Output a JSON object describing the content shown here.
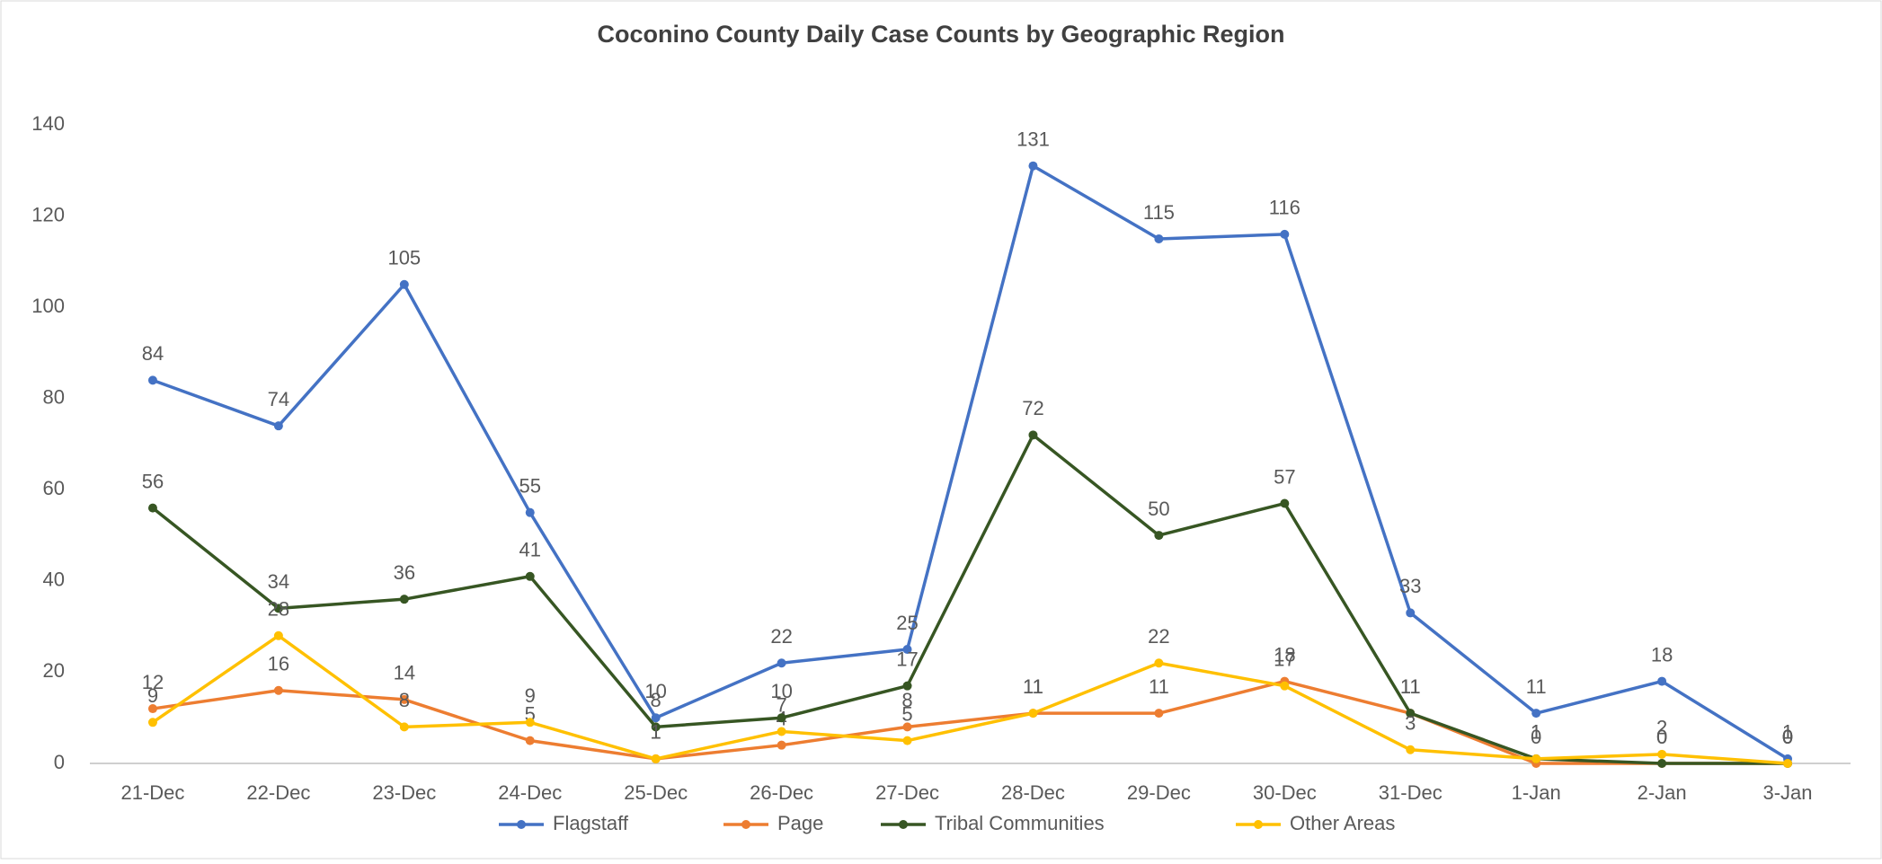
{
  "chart_data": {
    "type": "line",
    "title": "Coconino County Daily Case Counts by Geographic Region",
    "categories": [
      "21-Dec",
      "22-Dec",
      "23-Dec",
      "24-Dec",
      "25-Dec",
      "26-Dec",
      "27-Dec",
      "28-Dec",
      "29-Dec",
      "30-Dec",
      "31-Dec",
      "1-Jan",
      "2-Jan",
      "3-Jan"
    ],
    "series": [
      {
        "name": "Flagstaff",
        "color": "#4472c4",
        "values": [
          84,
          74,
          105,
          55,
          10,
          22,
          25,
          131,
          115,
          116,
          33,
          11,
          18,
          1
        ]
      },
      {
        "name": "Page",
        "color": "#ed7d31",
        "values": [
          12,
          16,
          14,
          5,
          1,
          4,
          8,
          11,
          11,
          18,
          11,
          0,
          0,
          0
        ]
      },
      {
        "name": "Tribal Communities",
        "color": "#375623",
        "values": [
          56,
          34,
          36,
          41,
          8,
          10,
          17,
          72,
          50,
          57,
          11,
          1,
          0,
          0
        ]
      },
      {
        "name": "Other Areas",
        "color": "#ffc000",
        "values": [
          9,
          28,
          8,
          9,
          1,
          7,
          5,
          11,
          22,
          17,
          3,
          1,
          2,
          0
        ]
      }
    ],
    "ylim": [
      0,
      140
    ],
    "yticks": [
      0,
      20,
      40,
      60,
      80,
      100,
      120,
      140
    ],
    "grid": false,
    "legend": "bottom"
  }
}
